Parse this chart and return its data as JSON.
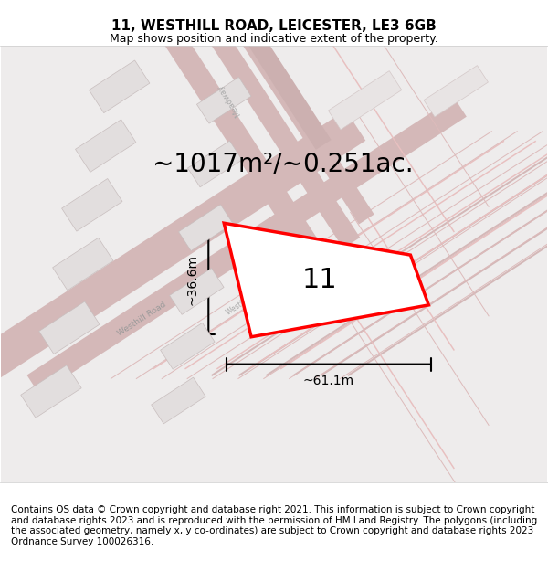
{
  "title": "11, WESTHILL ROAD, LEICESTER, LE3 6GB",
  "subtitle": "Map shows position and indicative extent of the property.",
  "footer": "Contains OS data © Crown copyright and database right 2021. This information is subject to Crown copyright and database rights 2023 and is reproduced with the permission of HM Land Registry. The polygons (including the associated geometry, namely x, y co-ordinates) are subject to Crown copyright and database rights 2023 Ordnance Survey 100026316.",
  "area_text": "~1017m²/~0.251ac.",
  "property_number": "11",
  "width_label": "~61.1m",
  "height_label": "~36.6m",
  "bg_color": "#f5f5f5",
  "map_bg": "#f0eeee",
  "road_color": "#d4b8b8",
  "plot_outline_color": "#ff0000",
  "block_color": "#e8e4e4",
  "road_label_color": "#888888",
  "dim_line_color": "#000000",
  "title_fontsize": 11,
  "subtitle_fontsize": 9,
  "footer_fontsize": 7.5,
  "area_fontsize": 20,
  "number_fontsize": 22
}
